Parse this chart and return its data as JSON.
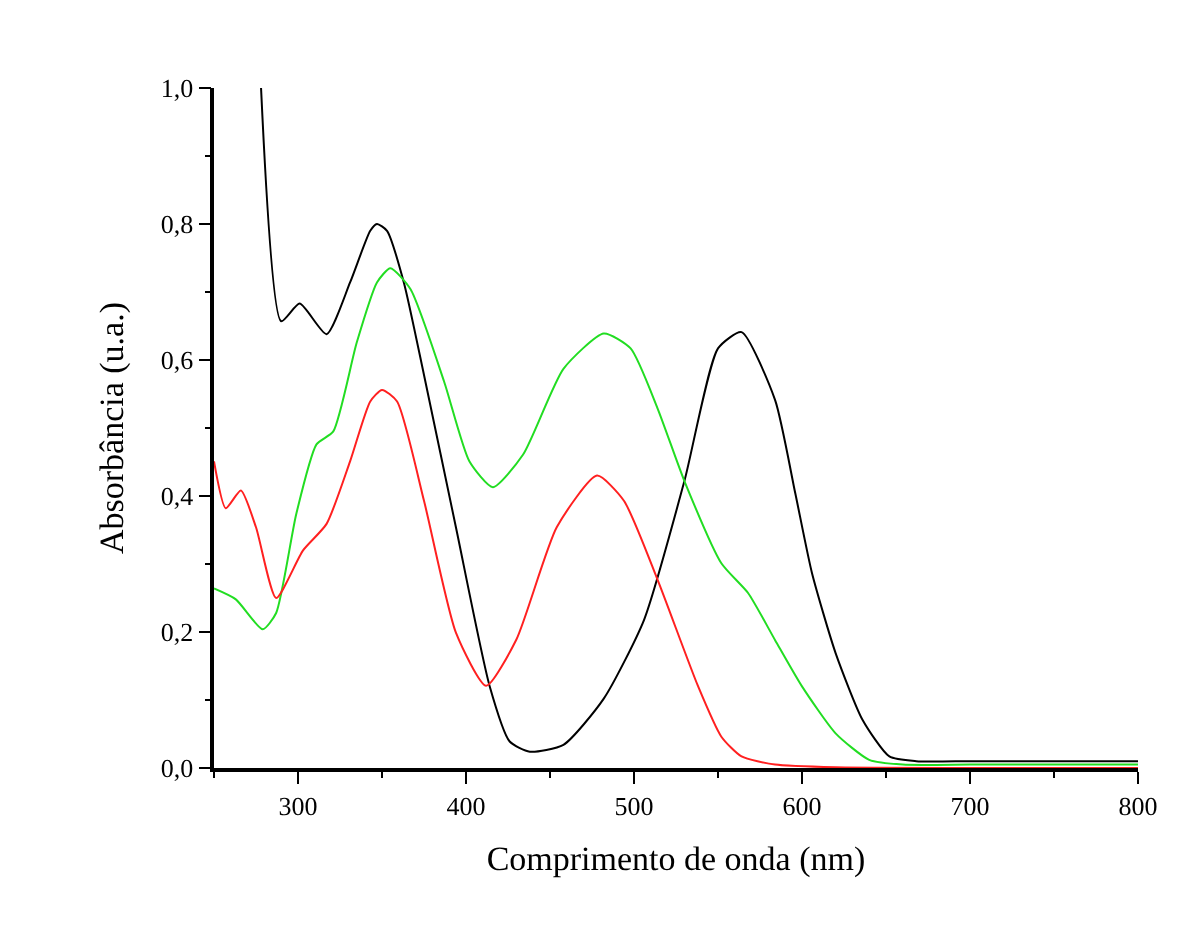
{
  "chart_data": {
    "type": "line",
    "xlabel": "Comprimento de onda (nm)",
    "ylabel": "Absorbância (u.a.)",
    "xlim": [
      250,
      800
    ],
    "xticks": [
      300,
      400,
      500,
      600,
      700,
      800
    ],
    "ylim": [
      0,
      1
    ],
    "yticks": [
      {
        "value": 0,
        "label": "0,0"
      },
      {
        "value": 0.2,
        "label": "0,2"
      },
      {
        "value": 0.4,
        "label": "0,4"
      },
      {
        "value": 0.6,
        "label": "0,6"
      },
      {
        "value": 0.8,
        "label": "0,8"
      },
      {
        "value": 1,
        "label": "1,0"
      }
    ],
    "grid": false,
    "marker": "none",
    "line_style": "solid",
    "series": [
      {
        "color": "#000000",
        "x": [
          278,
          290,
          301,
          317,
          331,
          343,
          347,
          353,
          363,
          375,
          394,
          414,
          426,
          438,
          458,
          482,
          506,
          530,
          550,
          564,
          584,
          596,
          606,
          620,
          636,
          652,
          668,
          700,
          750,
          800
        ],
        "values": [
          1.0,
          0.657,
          0.683,
          0.638,
          0.714,
          0.79,
          0.8,
          0.79,
          0.714,
          0.578,
          0.354,
          0.121,
          0.039,
          0.024,
          0.034,
          0.102,
          0.218,
          0.422,
          0.617,
          0.641,
          0.541,
          0.404,
          0.286,
          0.169,
          0.071,
          0.017,
          0.01,
          0.01,
          0.01,
          0.01
        ]
      },
      {
        "color": "#22dd22",
        "x": [
          250,
          263,
          279,
          287,
          299,
          311,
          321,
          335,
          347,
          355,
          367,
          387,
          402,
          416,
          434,
          458,
          482,
          498,
          514,
          530,
          552,
          568,
          584,
          600,
          620,
          640,
          660,
          700,
          750,
          800
        ],
        "values": [
          0.264,
          0.248,
          0.204,
          0.228,
          0.374,
          0.476,
          0.495,
          0.626,
          0.714,
          0.735,
          0.704,
          0.568,
          0.451,
          0.413,
          0.461,
          0.587,
          0.639,
          0.617,
          0.529,
          0.422,
          0.301,
          0.257,
          0.188,
          0.12,
          0.051,
          0.012,
          0.005,
          0.005,
          0.005,
          0.005
        ]
      },
      {
        "color": "#ff2020",
        "x": [
          250,
          257,
          266,
          275,
          287,
          303,
          317,
          331,
          343,
          350,
          359,
          375,
          394,
          412,
          430,
          454,
          478,
          494,
          514,
          538,
          552,
          564,
          584,
          620,
          700,
          800
        ],
        "values": [
          0.451,
          0.382,
          0.408,
          0.354,
          0.25,
          0.32,
          0.359,
          0.451,
          0.539,
          0.556,
          0.539,
          0.393,
          0.199,
          0.121,
          0.189,
          0.354,
          0.43,
          0.393,
          0.277,
          0.121,
          0.046,
          0.017,
          0.005,
          0.001,
          0.0,
          0.0
        ]
      }
    ]
  }
}
